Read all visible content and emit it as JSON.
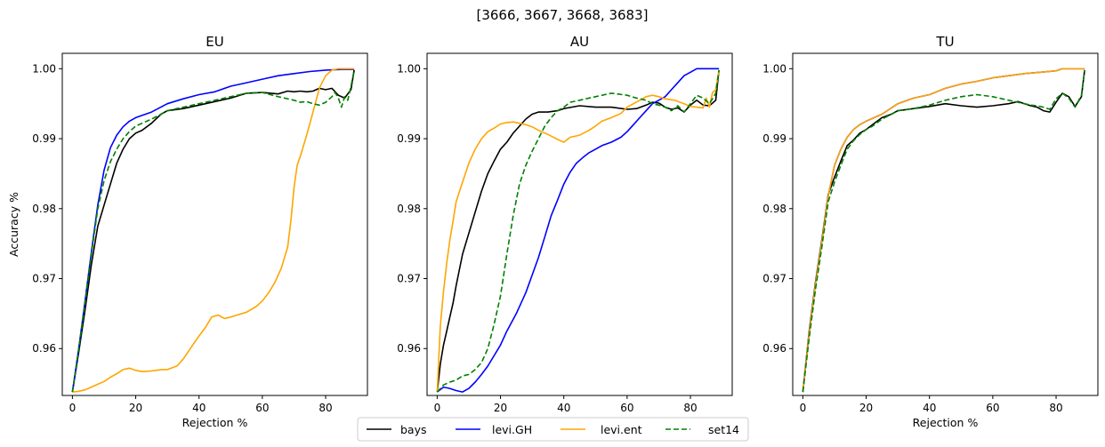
{
  "figure": {
    "suptitle": "[3666, 3667, 3668, 3683]"
  },
  "legend": {
    "entries": [
      {
        "label": "bays",
        "color": "#000000",
        "dash": "solid"
      },
      {
        "label": "levi.GH",
        "color": "#0000ff",
        "dash": "solid"
      },
      {
        "label": "levi.ent",
        "color": "#ffa500",
        "dash": "solid"
      },
      {
        "label": "set14",
        "color": "#008000",
        "dash": "dashed"
      }
    ]
  },
  "chart_data": [
    {
      "type": "line",
      "title": "EU",
      "xlabel": "Rejection %",
      "ylabel": "Accuracy %",
      "xlim": [
        -3.2,
        93.2
      ],
      "ylim": [
        0.9533,
        1.0022
      ],
      "xticks": [
        0,
        20,
        40,
        60,
        80
      ],
      "yticks": [
        0.96,
        0.97,
        0.98,
        0.99,
        1.0
      ],
      "ytick_labels": [
        "0.96",
        "0.97",
        "0.98",
        "0.99",
        "1.00"
      ],
      "grid": false,
      "series": [
        {
          "name": "bays",
          "color": "#000000",
          "dash": "solid",
          "x": [
            0,
            2,
            4,
            6,
            8,
            10,
            12,
            14,
            16,
            18,
            20,
            22,
            25,
            28,
            30,
            35,
            40,
            45,
            50,
            55,
            60,
            65,
            68,
            70,
            72,
            74,
            76,
            78,
            80,
            82,
            84,
            86,
            88,
            89
          ],
          "y": [
            0.9538,
            0.9595,
            0.9655,
            0.972,
            0.9775,
            0.9805,
            0.9835,
            0.9865,
            0.9885,
            0.99,
            0.9908,
            0.9912,
            0.9922,
            0.9935,
            0.994,
            0.9943,
            0.9948,
            0.9953,
            0.9958,
            0.9965,
            0.9966,
            0.9964,
            0.9968,
            0.9967,
            0.9968,
            0.9967,
            0.9968,
            0.9972,
            0.997,
            0.9972,
            0.9962,
            0.9958,
            0.997,
            0.9998
          ]
        },
        {
          "name": "levi.GH",
          "color": "#0000ff",
          "dash": "solid",
          "x": [
            0,
            2,
            4,
            6,
            8,
            10,
            12,
            14,
            16,
            18,
            20,
            25,
            30,
            35,
            40,
            45,
            50,
            55,
            60,
            65,
            70,
            75,
            80,
            85,
            89
          ],
          "y": [
            0.9538,
            0.96,
            0.9668,
            0.9738,
            0.9805,
            0.9855,
            0.9887,
            0.9905,
            0.9917,
            0.9925,
            0.993,
            0.9938,
            0.995,
            0.9957,
            0.9963,
            0.9967,
            0.9975,
            0.998,
            0.9985,
            0.999,
            0.9993,
            0.9996,
            0.9998,
            0.9999,
            0.9999
          ]
        },
        {
          "name": "levi.ent",
          "color": "#ffa500",
          "dash": "solid",
          "x": [
            0,
            2,
            4,
            6,
            8,
            10,
            12,
            14,
            16,
            18,
            20,
            22,
            25,
            28,
            30,
            33,
            35,
            38,
            40,
            42,
            44,
            46,
            48,
            50,
            52,
            55,
            58,
            60,
            62,
            64,
            66,
            68,
            69,
            70,
            71,
            72,
            74,
            76,
            78,
            80,
            82,
            84,
            86,
            88,
            89
          ],
          "y": [
            0.9538,
            0.9539,
            0.9541,
            0.9545,
            0.9549,
            0.9553,
            0.9559,
            0.9564,
            0.957,
            0.9572,
            0.9569,
            0.9567,
            0.9568,
            0.957,
            0.957,
            0.9575,
            0.9585,
            0.9605,
            0.9618,
            0.963,
            0.9645,
            0.9648,
            0.9643,
            0.9645,
            0.9648,
            0.9652,
            0.966,
            0.9668,
            0.968,
            0.9695,
            0.9715,
            0.9745,
            0.9782,
            0.983,
            0.9862,
            0.9875,
            0.9905,
            0.9938,
            0.9972,
            0.999,
            0.9998,
            1.0,
            1.0,
            1.0,
            1.0
          ]
        },
        {
          "name": "set14",
          "color": "#008000",
          "dash": "dashed",
          "x": [
            0,
            2,
            4,
            6,
            8,
            10,
            12,
            14,
            16,
            18,
            20,
            22,
            25,
            28,
            30,
            35,
            40,
            45,
            50,
            55,
            60,
            65,
            70,
            72,
            74,
            76,
            78,
            80,
            82,
            83,
            84,
            85,
            86,
            87,
            88,
            89
          ],
          "y": [
            0.9538,
            0.96,
            0.9665,
            0.9735,
            0.98,
            0.984,
            0.9867,
            0.9885,
            0.99,
            0.991,
            0.9918,
            0.9922,
            0.9928,
            0.9935,
            0.994,
            0.9945,
            0.995,
            0.9955,
            0.996,
            0.9965,
            0.9966,
            0.996,
            0.9955,
            0.9952,
            0.9953,
            0.995,
            0.9948,
            0.9952,
            0.996,
            0.9966,
            0.9958,
            0.9945,
            0.996,
            0.9955,
            0.9975,
            0.9998
          ]
        }
      ]
    },
    {
      "type": "line",
      "title": "AU",
      "xlabel": "Rejection %",
      "ylabel": "",
      "xlim": [
        -3.2,
        93.2
      ],
      "ylim": [
        0.9533,
        1.0022
      ],
      "xticks": [
        0,
        20,
        40,
        60,
        80
      ],
      "yticks": [
        0.96,
        0.97,
        0.98,
        0.99,
        1.0
      ],
      "ytick_labels": [
        "0.96",
        "0.97",
        "0.98",
        "0.99",
        "1.00"
      ],
      "grid": false,
      "series": [
        {
          "name": "bays",
          "color": "#000000",
          "dash": "solid",
          "x": [
            0,
            1,
            2,
            3,
            4,
            5,
            6,
            8,
            10,
            12,
            14,
            16,
            18,
            20,
            22,
            24,
            26,
            28,
            30,
            32,
            35,
            38,
            40,
            45,
            50,
            55,
            60,
            63,
            66,
            68,
            70,
            72,
            74,
            76,
            78,
            80,
            82,
            84,
            86,
            88,
            89
          ],
          "y": [
            0.9538,
            0.9578,
            0.9605,
            0.9625,
            0.9645,
            0.9665,
            0.969,
            0.9735,
            0.9765,
            0.9795,
            0.9825,
            0.985,
            0.9868,
            0.9885,
            0.9895,
            0.9908,
            0.9918,
            0.9928,
            0.9935,
            0.9938,
            0.9938,
            0.994,
            0.9943,
            0.9947,
            0.9945,
            0.9945,
            0.9942,
            0.9943,
            0.9948,
            0.9952,
            0.9951,
            0.9945,
            0.9942,
            0.9944,
            0.9938,
            0.9948,
            0.9955,
            0.9948,
            0.9947,
            0.9955,
            0.9998
          ]
        },
        {
          "name": "levi.GH",
          "color": "#0000ff",
          "dash": "solid",
          "x": [
            0,
            2,
            4,
            6,
            8,
            10,
            12,
            14,
            16,
            18,
            20,
            22,
            25,
            28,
            30,
            32,
            34,
            36,
            38,
            40,
            42,
            44,
            46,
            48,
            50,
            52,
            55,
            58,
            60,
            62,
            64,
            66,
            68,
            70,
            72,
            74,
            76,
            78,
            80,
            82,
            84,
            86,
            88,
            89
          ],
          "y": [
            0.9538,
            0.9545,
            0.9543,
            0.954,
            0.9538,
            0.9543,
            0.9552,
            0.9563,
            0.9575,
            0.959,
            0.9605,
            0.9625,
            0.965,
            0.968,
            0.9705,
            0.973,
            0.976,
            0.979,
            0.9812,
            0.9835,
            0.9852,
            0.9865,
            0.9873,
            0.988,
            0.9885,
            0.989,
            0.9895,
            0.9902,
            0.991,
            0.992,
            0.993,
            0.994,
            0.995,
            0.9955,
            0.996,
            0.997,
            0.998,
            0.999,
            0.9995,
            1.0,
            1.0,
            1.0,
            1.0,
            1.0
          ]
        },
        {
          "name": "levi.ent",
          "color": "#ffa500",
          "dash": "solid",
          "x": [
            0,
            1,
            2,
            3,
            4,
            5,
            6,
            8,
            10,
            12,
            14,
            16,
            18,
            20,
            22,
            24,
            26,
            28,
            30,
            32,
            35,
            38,
            40,
            42,
            45,
            48,
            50,
            52,
            55,
            58,
            60,
            62,
            64,
            66,
            68,
            70,
            72,
            75,
            78,
            80,
            82,
            84,
            85,
            86,
            87,
            88,
            89
          ],
          "y": [
            0.9538,
            0.9632,
            0.9682,
            0.9722,
            0.9755,
            0.9782,
            0.981,
            0.9838,
            0.9865,
            0.9885,
            0.99,
            0.991,
            0.9915,
            0.9921,
            0.9923,
            0.9924,
            0.9922,
            0.992,
            0.9917,
            0.9912,
            0.9906,
            0.9899,
            0.9895,
            0.9902,
            0.9905,
            0.9912,
            0.9918,
            0.9925,
            0.993,
            0.9936,
            0.9945,
            0.995,
            0.9955,
            0.996,
            0.9962,
            0.996,
            0.9957,
            0.9955,
            0.995,
            0.9946,
            0.9945,
            0.9944,
            0.9958,
            0.9945,
            0.9966,
            0.997,
            0.9998
          ]
        },
        {
          "name": "set14",
          "color": "#008000",
          "dash": "dashed",
          "x": [
            0,
            2,
            4,
            6,
            8,
            10,
            12,
            14,
            16,
            18,
            20,
            22,
            24,
            26,
            28,
            30,
            32,
            34,
            36,
            38,
            40,
            42,
            45,
            50,
            55,
            60,
            63,
            66,
            68,
            70,
            72,
            74,
            76,
            78,
            80,
            82,
            84,
            86,
            88,
            89
          ],
          "y": [
            0.9538,
            0.9548,
            0.9552,
            0.9555,
            0.9561,
            0.9563,
            0.957,
            0.958,
            0.96,
            0.9635,
            0.9675,
            0.9735,
            0.979,
            0.9835,
            0.9862,
            0.9882,
            0.99,
            0.9918,
            0.993,
            0.994,
            0.9945,
            0.9952,
            0.9955,
            0.996,
            0.9965,
            0.9962,
            0.9958,
            0.9955,
            0.995,
            0.9948,
            0.9945,
            0.994,
            0.9947,
            0.9938,
            0.995,
            0.9962,
            0.9958,
            0.995,
            0.9965,
            0.9998
          ]
        }
      ]
    },
    {
      "type": "line",
      "title": "TU",
      "xlabel": "Rejection %",
      "ylabel": "",
      "xlim": [
        -3.2,
        93.2
      ],
      "ylim": [
        0.9533,
        1.0022
      ],
      "xticks": [
        0,
        20,
        40,
        60,
        80
      ],
      "yticks": [
        0.96,
        0.97,
        0.98,
        0.99,
        1.0
      ],
      "ytick_labels": [
        "0.96",
        "0.97",
        "0.98",
        "0.99",
        "1.00"
      ],
      "grid": false,
      "series": [
        {
          "name": "bays",
          "color": "#000000",
          "dash": "solid",
          "x": [
            0,
            2,
            4,
            6,
            8,
            10,
            12,
            14,
            16,
            18,
            20,
            22,
            25,
            28,
            30,
            35,
            40,
            45,
            50,
            55,
            60,
            65,
            68,
            70,
            72,
            74,
            76,
            78,
            80,
            82,
            84,
            86,
            88,
            89
          ],
          "y": [
            0.9538,
            0.9625,
            0.9695,
            0.9755,
            0.982,
            0.9845,
            0.9868,
            0.989,
            0.9898,
            0.9908,
            0.9913,
            0.992,
            0.993,
            0.9935,
            0.994,
            0.9943,
            0.9946,
            0.995,
            0.9947,
            0.9945,
            0.9947,
            0.995,
            0.9953,
            0.995,
            0.9947,
            0.9945,
            0.994,
            0.9938,
            0.9952,
            0.9965,
            0.996,
            0.9946,
            0.996,
            0.9998
          ]
        },
        {
          "name": "levi.GH",
          "color": "#0000ff",
          "dash": "solid",
          "x": [
            0,
            2,
            4,
            6,
            8,
            10,
            12,
            14,
            16,
            18,
            20,
            25,
            30,
            35,
            40,
            45,
            50,
            55,
            60,
            65,
            70,
            75,
            80,
            82,
            84,
            86,
            88,
            89
          ],
          "y": [
            0.9538,
            0.9622,
            0.9692,
            0.9752,
            0.9818,
            0.9862,
            0.9885,
            0.9902,
            0.9913,
            0.992,
            0.9925,
            0.9935,
            0.995,
            0.9958,
            0.9963,
            0.9972,
            0.9978,
            0.9982,
            0.9987,
            0.999,
            0.9993,
            0.9995,
            0.9997,
            1.0,
            1.0,
            1.0,
            1.0,
            1.0
          ]
        },
        {
          "name": "levi.ent",
          "color": "#ffa500",
          "dash": "solid",
          "x": [
            0,
            2,
            4,
            6,
            8,
            10,
            12,
            14,
            16,
            18,
            20,
            25,
            30,
            35,
            40,
            45,
            50,
            55,
            60,
            65,
            70,
            75,
            80,
            82,
            84,
            86,
            88,
            89
          ],
          "y": [
            0.9538,
            0.9622,
            0.9692,
            0.9752,
            0.9818,
            0.9862,
            0.9885,
            0.9902,
            0.9913,
            0.992,
            0.9925,
            0.9935,
            0.995,
            0.9958,
            0.9963,
            0.9972,
            0.9978,
            0.9982,
            0.9987,
            0.999,
            0.9993,
            0.9995,
            0.9997,
            1.0,
            1.0,
            1.0,
            1.0,
            1.0
          ]
        },
        {
          "name": "set14",
          "color": "#008000",
          "dash": "dashed",
          "x": [
            0,
            2,
            4,
            6,
            8,
            10,
            12,
            14,
            16,
            18,
            20,
            22,
            25,
            28,
            30,
            35,
            40,
            45,
            50,
            55,
            60,
            65,
            70,
            72,
            74,
            76,
            78,
            80,
            82,
            84,
            86,
            88,
            89
          ],
          "y": [
            0.9538,
            0.9615,
            0.9685,
            0.9745,
            0.981,
            0.9838,
            0.9862,
            0.9885,
            0.9897,
            0.9906,
            0.9913,
            0.9918,
            0.9928,
            0.9935,
            0.994,
            0.9943,
            0.9948,
            0.9955,
            0.996,
            0.9963,
            0.996,
            0.9955,
            0.995,
            0.9948,
            0.9947,
            0.9945,
            0.9942,
            0.9957,
            0.9965,
            0.9958,
            0.9945,
            0.9962,
            0.9998
          ]
        }
      ]
    }
  ]
}
